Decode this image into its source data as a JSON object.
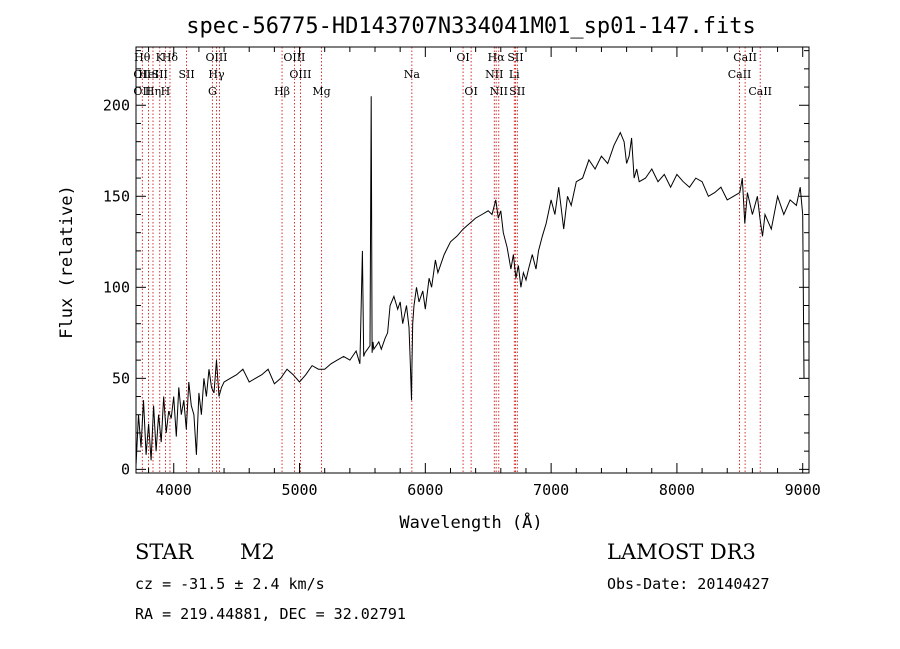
{
  "chart_data": {
    "type": "line",
    "title": "spec-56775-HD143707N334041M01_sp01-147.fits",
    "xlabel": "Wavelength (Å)",
    "ylabel": "Flux (relative)",
    "xlim": [
      3700,
      9050
    ],
    "ylim": [
      -2,
      232
    ],
    "xticks": [
      4000,
      5000,
      6000,
      7000,
      8000,
      9000
    ],
    "yticks": [
      0,
      50,
      100,
      150,
      200
    ],
    "grid": false,
    "series": [
      {
        "color": "#000000",
        "x": [
          3700,
          3720,
          3740,
          3760,
          3780,
          3800,
          3820,
          3840,
          3860,
          3880,
          3900,
          3920,
          3940,
          3960,
          3980,
          4000,
          4020,
          4040,
          4060,
          4080,
          4100,
          4120,
          4140,
          4160,
          4180,
          4200,
          4220,
          4240,
          4260,
          4280,
          4300,
          4320,
          4340,
          4360,
          4380,
          4400,
          4450,
          4500,
          4550,
          4600,
          4650,
          4700,
          4750,
          4800,
          4850,
          4900,
          4950,
          5000,
          5050,
          5100,
          5150,
          5200,
          5250,
          5300,
          5350,
          5400,
          5450,
          5480,
          5500,
          5510,
          5520,
          5540,
          5560,
          5570,
          5577,
          5584,
          5590,
          5610,
          5630,
          5650,
          5680,
          5700,
          5720,
          5750,
          5780,
          5800,
          5820,
          5850,
          5870,
          5880,
          5890,
          5893,
          5900,
          5910,
          5930,
          5950,
          5980,
          6000,
          6030,
          6050,
          6080,
          6100,
          6150,
          6200,
          6250,
          6300,
          6350,
          6400,
          6450,
          6500,
          6530,
          6560,
          6580,
          6600,
          6620,
          6650,
          6680,
          6700,
          6720,
          6740,
          6760,
          6780,
          6800,
          6820,
          6850,
          6880,
          6900,
          6930,
          6960,
          7000,
          7030,
          7060,
          7100,
          7130,
          7160,
          7200,
          7250,
          7300,
          7350,
          7400,
          7450,
          7500,
          7550,
          7580,
          7600,
          7620,
          7640,
          7660,
          7680,
          7700,
          7750,
          7800,
          7850,
          7900,
          7950,
          8000,
          8050,
          8100,
          8150,
          8200,
          8250,
          8300,
          8350,
          8400,
          8450,
          8500,
          8520,
          8540,
          8560,
          8600,
          8640,
          8660,
          8680,
          8700,
          8750,
          8800,
          8850,
          8900,
          8950,
          8980,
          9000,
          9010
        ],
        "y": [
          2,
          30,
          12,
          38,
          8,
          25,
          5,
          35,
          10,
          30,
          15,
          40,
          20,
          32,
          28,
          40,
          18,
          45,
          30,
          38,
          22,
          48,
          35,
          30,
          8,
          42,
          30,
          50,
          40,
          55,
          45,
          42,
          60,
          40,
          45,
          48,
          50,
          52,
          55,
          48,
          50,
          52,
          55,
          47,
          50,
          55,
          52,
          48,
          52,
          57,
          55,
          55,
          58,
          60,
          62,
          60,
          65,
          58,
          120,
          62,
          64,
          66,
          68,
          205,
          64,
          70,
          66,
          68,
          70,
          66,
          72,
          75,
          90,
          95,
          88,
          92,
          80,
          90,
          78,
          60,
          38,
          55,
          80,
          90,
          100,
          92,
          98,
          88,
          105,
          100,
          115,
          108,
          118,
          125,
          128,
          132,
          135,
          138,
          140,
          142,
          140,
          148,
          138,
          142,
          130,
          122,
          110,
          118,
          105,
          112,
          100,
          108,
          104,
          110,
          118,
          110,
          120,
          128,
          135,
          148,
          140,
          155,
          132,
          150,
          145,
          158,
          160,
          170,
          165,
          172,
          168,
          178,
          185,
          180,
          168,
          172,
          182,
          160,
          165,
          158,
          160,
          165,
          158,
          162,
          155,
          162,
          158,
          155,
          160,
          158,
          150,
          152,
          155,
          148,
          150,
          152,
          160,
          135,
          152,
          140,
          150,
          138,
          128,
          140,
          132,
          150,
          140,
          148,
          145,
          155,
          140,
          50
        ]
      }
    ]
  },
  "lines": [
    {
      "x": 3750,
      "row": 0,
      "label": "Hθ"
    },
    {
      "x": 3750,
      "row": 1,
      "label": "OII"
    },
    {
      "x": 3750,
      "row": 2,
      "label": "OII"
    },
    {
      "x": 3800,
      "row": 1,
      "label": "HeI"
    },
    {
      "x": 3835,
      "row": 2,
      "label": "Hη"
    },
    {
      "x": 3889,
      "row": 0,
      "label": "K"
    },
    {
      "x": 3889,
      "row": 1,
      "label": "SII"
    },
    {
      "x": 3934,
      "row": 2,
      "label": "H"
    },
    {
      "x": 3970,
      "row": 0,
      "label": "Hδ"
    },
    {
      "x": 4102,
      "row": 1,
      "label": "SII"
    },
    {
      "x": 4307,
      "row": 2,
      "label": "G"
    },
    {
      "x": 4340,
      "row": 0,
      "label": "OIII"
    },
    {
      "x": 4340,
      "row": 1,
      "label": "Hγ"
    },
    {
      "x": 4363,
      "row": 2,
      "label": ""
    },
    {
      "x": 4861,
      "row": 2,
      "label": "Hβ"
    },
    {
      "x": 4959,
      "row": 0,
      "label": "OIII"
    },
    {
      "x": 5007,
      "row": 1,
      "label": "OIII"
    },
    {
      "x": 5175,
      "row": 2,
      "label": "Mg"
    },
    {
      "x": 5893,
      "row": 1,
      "label": "Na"
    },
    {
      "x": 6300,
      "row": 0,
      "label": "OI"
    },
    {
      "x": 6364,
      "row": 2,
      "label": "OI"
    },
    {
      "x": 6548,
      "row": 1,
      "label": "NII"
    },
    {
      "x": 6563,
      "row": 0,
      "label": "Hα"
    },
    {
      "x": 6584,
      "row": 2,
      "label": "NII"
    },
    {
      "x": 6707,
      "row": 1,
      "label": "Li"
    },
    {
      "x": 6717,
      "row": 0,
      "label": "SII"
    },
    {
      "x": 6731,
      "row": 2,
      "label": "SII"
    },
    {
      "x": 8498,
      "row": 1,
      "label": "CaII"
    },
    {
      "x": 8542,
      "row": 0,
      "label": "CaII"
    },
    {
      "x": 8662,
      "row": 2,
      "label": "CaII"
    }
  ],
  "info": {
    "class": "STAR",
    "subclass": "M2",
    "survey": "LAMOST DR3",
    "cz": "cz = -31.5 ± 2.4 km/s",
    "obsdate": "Obs-Date: 20140427",
    "radec": "RA = 219.44881, DEC =  32.02791"
  }
}
